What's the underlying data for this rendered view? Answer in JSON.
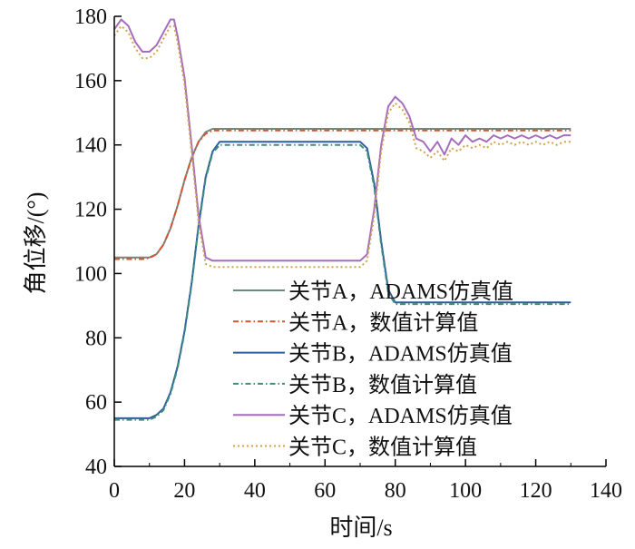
{
  "chart_data": {
    "type": "line",
    "xlabel": "时间/s",
    "ylabel": "角位移/(°)",
    "xlim": [
      0,
      140
    ],
    "ylim": [
      40,
      180
    ],
    "xticks": [
      0,
      20,
      40,
      60,
      80,
      100,
      120,
      140
    ],
    "yticks": [
      40,
      60,
      80,
      100,
      120,
      140,
      160,
      180
    ],
    "grid": false,
    "legend_position": "lower-right",
    "series": [
      {
        "name": "关节A，ADAMS仿真值",
        "color": "#6f8a7e",
        "style": "solid",
        "x": [
          0,
          8,
          10,
          12,
          14,
          16,
          18,
          20,
          22,
          24,
          26,
          28,
          30,
          130
        ],
        "y": [
          105,
          105,
          105,
          106,
          109,
          114,
          121,
          129,
          136,
          141,
          144,
          145,
          145,
          145
        ]
      },
      {
        "name": "关节A，数值计算值",
        "color": "#d9522f",
        "style": "dashdot",
        "x": [
          0,
          8,
          10,
          12,
          14,
          16,
          18,
          20,
          22,
          24,
          26,
          28,
          30,
          130
        ],
        "y": [
          104.5,
          104.5,
          104.8,
          106,
          109,
          114,
          121,
          129,
          136,
          141,
          143.5,
          144.5,
          144.5,
          144.5
        ]
      },
      {
        "name": "关节B，ADAMS仿真值",
        "color": "#2f5c9e",
        "style": "solid",
        "x": [
          0,
          10,
          12,
          14,
          16,
          18,
          20,
          22,
          24,
          26,
          28,
          30,
          70,
          72,
          74,
          76,
          78,
          80,
          130
        ],
        "y": [
          55,
          55,
          56,
          58,
          63,
          71,
          82,
          97,
          115,
          130,
          138,
          141,
          141,
          139,
          128,
          110,
          95,
          91,
          91
        ]
      },
      {
        "name": "关节B，数值计算值",
        "color": "#3c8f7c",
        "style": "dashdot",
        "x": [
          0,
          10,
          12,
          14,
          16,
          18,
          20,
          22,
          24,
          26,
          28,
          30,
          70,
          72,
          74,
          76,
          78,
          80,
          130
        ],
        "y": [
          54.5,
          54.5,
          55.5,
          57.5,
          62.5,
          70.5,
          81.5,
          96.5,
          114.5,
          129.5,
          137.5,
          140,
          140,
          138,
          127,
          109,
          94,
          90.5,
          90.5
        ]
      },
      {
        "name": "关节C，ADAMS仿真值",
        "color": "#a66dbd",
        "style": "solid",
        "x": [
          0,
          2,
          4,
          6,
          8,
          10,
          12,
          14,
          16,
          17,
          18,
          20,
          22,
          24,
          26,
          28,
          30,
          34,
          38,
          42,
          46,
          50,
          54,
          58,
          62,
          66,
          70,
          72,
          74,
          76,
          78,
          80,
          82,
          84,
          86,
          88,
          90,
          92,
          94,
          96,
          98,
          100,
          102,
          104,
          106,
          108,
          110,
          112,
          114,
          116,
          118,
          120,
          122,
          124,
          126,
          128,
          130
        ],
        "y": [
          176,
          179,
          177,
          172,
          169,
          169,
          171,
          175,
          179,
          179,
          174,
          161,
          140,
          118,
          105,
          104,
          104,
          104,
          104,
          104,
          104,
          104,
          104,
          104,
          104,
          104,
          104,
          106,
          120,
          140,
          152,
          155,
          153,
          149,
          142,
          141,
          138,
          141,
          137,
          142,
          140,
          143,
          141,
          142,
          141,
          143,
          142,
          143,
          142,
          143,
          142,
          143,
          142,
          143,
          142,
          143,
          143
        ]
      },
      {
        "name": "关节C，数值计算值",
        "color": "#d1a247",
        "style": "dotted",
        "x": [
          0,
          2,
          4,
          6,
          8,
          10,
          12,
          14,
          16,
          17,
          18,
          20,
          22,
          24,
          26,
          28,
          30,
          34,
          38,
          42,
          46,
          50,
          54,
          58,
          62,
          66,
          70,
          72,
          74,
          76,
          78,
          80,
          82,
          84,
          86,
          88,
          90,
          92,
          94,
          96,
          98,
          100,
          102,
          104,
          106,
          108,
          110,
          112,
          114,
          116,
          118,
          120,
          122,
          124,
          126,
          128,
          130
        ],
        "y": [
          174,
          177,
          175,
          170,
          167,
          167,
          169,
          173,
          177,
          177,
          172,
          159,
          138,
          116,
          103,
          102,
          102,
          102,
          102,
          102,
          102,
          102,
          102,
          102,
          102,
          102,
          102,
          104,
          118,
          138,
          150,
          153,
          151,
          147,
          139,
          138,
          136,
          138,
          135,
          139,
          138,
          140,
          139,
          140,
          139,
          141,
          140,
          141,
          140,
          141,
          140,
          141,
          140,
          141,
          140,
          141,
          141
        ]
      }
    ]
  }
}
